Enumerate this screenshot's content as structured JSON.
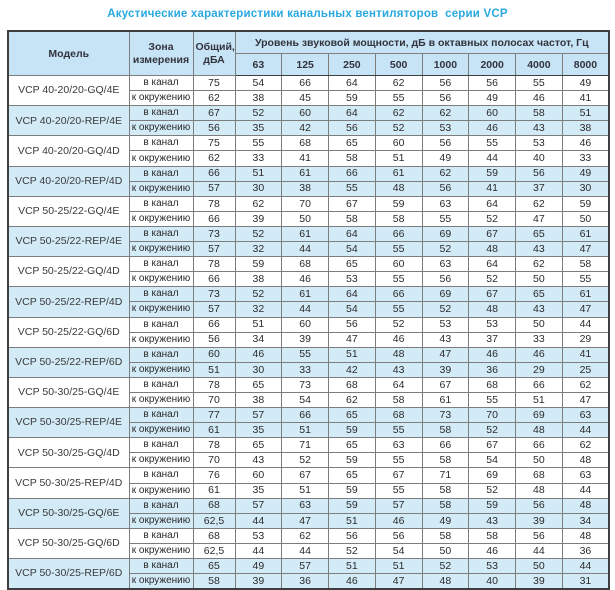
{
  "title": "Акустические характеристики канальных вентиляторов  серии VCP",
  "colors": {
    "accent": "#29a9e0",
    "header_bg": "#c6e4f5",
    "stripe_bg": "#d3eaf7",
    "text": "#2b2b2b"
  },
  "table": {
    "headers": {
      "model": "Модель",
      "zone": "Зона\nизмерения",
      "total": "Общий,\nдБА",
      "spl_group": "Уровень звуковой мощности, дБ в октавных полосах частот, Гц",
      "frequencies": [
        "63",
        "125",
        "250",
        "500",
        "1000",
        "2000",
        "4000",
        "8000"
      ]
    },
    "zone_labels": [
      "в канал",
      "к окружению"
    ],
    "models": [
      {
        "name": "VCP 40-20/20-GQ/4E",
        "shaded": false,
        "rows": [
          {
            "zone": "в канал",
            "total": "75",
            "levels": [
              54,
              66,
              64,
              62,
              56,
              56,
              55,
              49
            ]
          },
          {
            "zone": "к окружению",
            "total": "62",
            "levels": [
              38,
              45,
              59,
              55,
              56,
              49,
              46,
              41
            ]
          }
        ]
      },
      {
        "name": "VCP 40-20/20-REP/4E",
        "shaded": true,
        "rows": [
          {
            "zone": "в канал",
            "total": "67",
            "levels": [
              52,
              60,
              64,
              62,
              62,
              60,
              58,
              51
            ]
          },
          {
            "zone": "к окружению",
            "total": "56",
            "levels": [
              35,
              42,
              56,
              52,
              53,
              46,
              43,
              38
            ]
          }
        ]
      },
      {
        "name": "VCP 40-20/20-GQ/4D",
        "shaded": false,
        "rows": [
          {
            "zone": "в канал",
            "total": "75",
            "levels": [
              55,
              68,
              65,
              60,
              56,
              55,
              53,
              46
            ]
          },
          {
            "zone": "к окружению",
            "total": "62",
            "levels": [
              33,
              41,
              58,
              51,
              49,
              44,
              40,
              33
            ]
          }
        ]
      },
      {
        "name": "VCP 40-20/20-REP/4D",
        "shaded": true,
        "rows": [
          {
            "zone": "в канал",
            "total": "66",
            "levels": [
              51,
              61,
              66,
              61,
              62,
              59,
              56,
              49
            ]
          },
          {
            "zone": "к окружению",
            "total": "57",
            "levels": [
              30,
              38,
              55,
              48,
              56,
              41,
              37,
              30
            ]
          }
        ]
      },
      {
        "name": "VCP 50-25/22-GQ/4E",
        "shaded": false,
        "rows": [
          {
            "zone": "в канал",
            "total": "78",
            "levels": [
              62,
              70,
              67,
              59,
              63,
              64,
              62,
              59
            ]
          },
          {
            "zone": "к окружению",
            "total": "66",
            "levels": [
              39,
              50,
              58,
              58,
              55,
              52,
              47,
              50
            ]
          }
        ]
      },
      {
        "name": "VCP 50-25/22-REP/4E",
        "shaded": true,
        "rows": [
          {
            "zone": "в канал",
            "total": "73",
            "levels": [
              52,
              61,
              64,
              66,
              69,
              67,
              65,
              61
            ]
          },
          {
            "zone": "к окружению",
            "total": "57",
            "levels": [
              32,
              44,
              54,
              55,
              52,
              48,
              43,
              47
            ]
          }
        ]
      },
      {
        "name": "VCP 50-25/22-GQ/4D",
        "shaded": false,
        "rows": [
          {
            "zone": "в канал",
            "total": "78",
            "levels": [
              59,
              68,
              65,
              60,
              63,
              64,
              62,
              58
            ]
          },
          {
            "zone": "к окружению",
            "total": "66",
            "levels": [
              38,
              46,
              53,
              55,
              56,
              52,
              50,
              55
            ]
          }
        ]
      },
      {
        "name": "VCP 50-25/22-REP/4D",
        "shaded": true,
        "rows": [
          {
            "zone": "в канал",
            "total": "73",
            "levels": [
              52,
              61,
              64,
              66,
              69,
              67,
              65,
              61
            ]
          },
          {
            "zone": "к окружению",
            "total": "57",
            "levels": [
              32,
              44,
              54,
              55,
              52,
              48,
              43,
              47
            ]
          }
        ]
      },
      {
        "name": "VCP 50-25/22-GQ/6D",
        "shaded": false,
        "rows": [
          {
            "zone": "в канал",
            "total": "66",
            "levels": [
              51,
              60,
              56,
              52,
              53,
              53,
              50,
              44
            ]
          },
          {
            "zone": "к окружению",
            "total": "56",
            "levels": [
              34,
              39,
              47,
              46,
              43,
              37,
              33,
              29
            ]
          }
        ]
      },
      {
        "name": "VCP 50-25/22-REP/6D",
        "shaded": true,
        "rows": [
          {
            "zone": "в канал",
            "total": "60",
            "levels": [
              46,
              55,
              51,
              48,
              47,
              46,
              46,
              41
            ]
          },
          {
            "zone": "к окружению",
            "total": "51",
            "levels": [
              30,
              33,
              42,
              43,
              39,
              36,
              29,
              25
            ]
          }
        ]
      },
      {
        "name": "VCP 50-30/25-GQ/4E",
        "shaded": false,
        "rows": [
          {
            "zone": "в канал",
            "total": "78",
            "levels": [
              65,
              73,
              68,
              64,
              67,
              68,
              66,
              62
            ]
          },
          {
            "zone": "к окружению",
            "total": "70",
            "levels": [
              38,
              54,
              62,
              58,
              61,
              55,
              51,
              47
            ]
          }
        ]
      },
      {
        "name": "VCP 50-30/25-REP/4E",
        "shaded": true,
        "rows": [
          {
            "zone": "в канал",
            "total": "77",
            "levels": [
              57,
              66,
              65,
              68,
              73,
              70,
              69,
              63
            ]
          },
          {
            "zone": "к окружению",
            "total": "61",
            "levels": [
              35,
              51,
              59,
              55,
              58,
              52,
              48,
              44
            ]
          }
        ]
      },
      {
        "name": "VCP 50-30/25-GQ/4D",
        "shaded": false,
        "rows": [
          {
            "zone": "в канал",
            "total": "78",
            "levels": [
              65,
              71,
              65,
              63,
              66,
              67,
              66,
              62
            ]
          },
          {
            "zone": "к окружению",
            "total": "70",
            "levels": [
              43,
              52,
              59,
              55,
              58,
              54,
              50,
              48
            ]
          }
        ]
      },
      {
        "name": "VCP 50-30/25-REP/4D",
        "shaded": false,
        "rows": [
          {
            "zone": "в канал",
            "total": "76",
            "levels": [
              60,
              67,
              65,
              67,
              71,
              69,
              68,
              63
            ]
          },
          {
            "zone": "к окружению",
            "total": "61",
            "levels": [
              35,
              51,
              59,
              55,
              58,
              52,
              48,
              44
            ]
          }
        ]
      },
      {
        "name": "VCP 50-30/25-GQ/6E",
        "shaded": true,
        "rows": [
          {
            "zone": "в канал",
            "total": "68",
            "levels": [
              57,
              63,
              59,
              57,
              58,
              59,
              56,
              48
            ]
          },
          {
            "zone": "к окружению",
            "total": "62,5",
            "levels": [
              44,
              47,
              51,
              46,
              49,
              43,
              39,
              34
            ]
          }
        ]
      },
      {
        "name": "VCP 50-30/25-GQ/6D",
        "shaded": false,
        "rows": [
          {
            "zone": "в канал",
            "total": "68",
            "levels": [
              53,
              62,
              56,
              56,
              58,
              58,
              56,
              48
            ]
          },
          {
            "zone": "к окружению",
            "total": "62,5",
            "levels": [
              44,
              44,
              52,
              54,
              50,
              46,
              44,
              36
            ]
          }
        ]
      },
      {
        "name": "VCP 50-30/25-REP/6D",
        "shaded": true,
        "rows": [
          {
            "zone": "в канал",
            "total": "65",
            "levels": [
              49,
              57,
              51,
              51,
              52,
              53,
              50,
              44
            ]
          },
          {
            "zone": "к окружению",
            "total": "58",
            "levels": [
              39,
              36,
              46,
              47,
              48,
              40,
              39,
              31
            ]
          }
        ]
      }
    ]
  }
}
